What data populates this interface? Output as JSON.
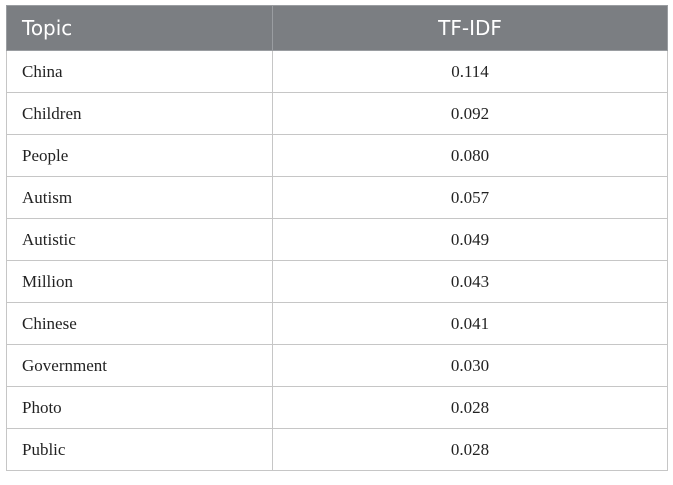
{
  "table": {
    "headers": [
      "Topic",
      "TF-IDF"
    ],
    "rows": [
      [
        "China",
        "0.114"
      ],
      [
        "Children",
        "0.092"
      ],
      [
        "People",
        "0.080"
      ],
      [
        "Autism",
        "0.057"
      ],
      [
        "Autistic",
        "0.049"
      ],
      [
        "Million",
        "0.043"
      ],
      [
        "Chinese",
        "0.041"
      ],
      [
        "Government",
        "0.030"
      ],
      [
        "Photo",
        "0.028"
      ],
      [
        "Public",
        "0.028"
      ]
    ]
  },
  "colors": {
    "header_background": "#7b7e82",
    "header_text": "#ffffff",
    "grid_line": "#c6c6c6"
  }
}
